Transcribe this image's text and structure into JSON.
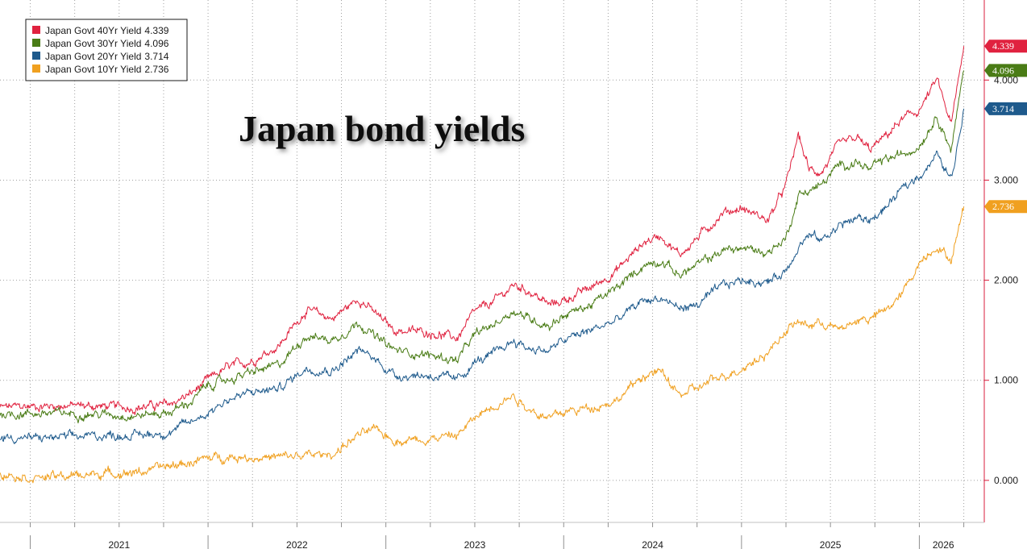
{
  "chart_data": {
    "type": "line",
    "title": "Japan bond yields",
    "x_years": [
      "2021",
      "2022",
      "2023",
      "2024",
      "2025",
      "2026"
    ],
    "y_ticks": [
      "0.000",
      "1.000",
      "2.000",
      "3.000",
      "4.000"
    ],
    "ylim": [
      -0.42,
      4.8
    ],
    "xlim": [
      2020.83,
      2026.27
    ],
    "grid": true,
    "legend_position": "top-left",
    "series": [
      {
        "name": "Japan Govt 40Yr Yield",
        "last": "4.339",
        "color": "#e0223f",
        "points": [
          [
            2020.83,
            0.73
          ],
          [
            2021.0,
            0.74
          ],
          [
            2021.2,
            0.75
          ],
          [
            2021.4,
            0.74
          ],
          [
            2021.6,
            0.73
          ],
          [
            2021.78,
            0.76
          ],
          [
            2021.9,
            0.86
          ],
          [
            2022.0,
            1.0
          ],
          [
            2022.1,
            1.12
          ],
          [
            2022.25,
            1.2
          ],
          [
            2022.4,
            1.35
          ],
          [
            2022.55,
            1.7
          ],
          [
            2022.7,
            1.62
          ],
          [
            2022.85,
            1.82
          ],
          [
            2022.95,
            1.65
          ],
          [
            2023.05,
            1.5
          ],
          [
            2023.25,
            1.48
          ],
          [
            2023.4,
            1.42
          ],
          [
            2023.5,
            1.68
          ],
          [
            2023.6,
            1.78
          ],
          [
            2023.72,
            1.95
          ],
          [
            2023.8,
            1.9
          ],
          [
            2023.92,
            1.75
          ],
          [
            2024.0,
            1.8
          ],
          [
            2024.15,
            1.92
          ],
          [
            2024.3,
            2.1
          ],
          [
            2024.45,
            2.38
          ],
          [
            2024.55,
            2.45
          ],
          [
            2024.65,
            2.25
          ],
          [
            2024.75,
            2.42
          ],
          [
            2024.9,
            2.68
          ],
          [
            2025.0,
            2.72
          ],
          [
            2025.15,
            2.6
          ],
          [
            2025.25,
            2.95
          ],
          [
            2025.32,
            3.45
          ],
          [
            2025.38,
            3.1
          ],
          [
            2025.45,
            3.08
          ],
          [
            2025.55,
            3.35
          ],
          [
            2025.65,
            3.42
          ],
          [
            2025.72,
            3.3
          ],
          [
            2025.8,
            3.42
          ],
          [
            2025.9,
            3.6
          ],
          [
            2026.0,
            3.7
          ],
          [
            2026.1,
            4.0
          ],
          [
            2026.18,
            3.55
          ],
          [
            2026.25,
            4.339
          ]
        ]
      },
      {
        "name": "Japan Govt 30Yr Yield",
        "last": "4.096",
        "color": "#4a7c16",
        "points": [
          [
            2020.83,
            0.66
          ],
          [
            2021.0,
            0.67
          ],
          [
            2021.2,
            0.67
          ],
          [
            2021.4,
            0.66
          ],
          [
            2021.6,
            0.65
          ],
          [
            2021.78,
            0.68
          ],
          [
            2021.9,
            0.78
          ],
          [
            2022.0,
            0.95
          ],
          [
            2022.1,
            1.0
          ],
          [
            2022.25,
            1.08
          ],
          [
            2022.4,
            1.15
          ],
          [
            2022.55,
            1.45
          ],
          [
            2022.7,
            1.4
          ],
          [
            2022.85,
            1.58
          ],
          [
            2022.95,
            1.42
          ],
          [
            2023.05,
            1.3
          ],
          [
            2023.25,
            1.25
          ],
          [
            2023.4,
            1.2
          ],
          [
            2023.5,
            1.45
          ],
          [
            2023.6,
            1.55
          ],
          [
            2023.72,
            1.7
          ],
          [
            2023.8,
            1.62
          ],
          [
            2023.92,
            1.55
          ],
          [
            2024.0,
            1.65
          ],
          [
            2024.15,
            1.75
          ],
          [
            2024.3,
            1.92
          ],
          [
            2024.45,
            2.15
          ],
          [
            2024.55,
            2.2
          ],
          [
            2024.65,
            2.05
          ],
          [
            2024.75,
            2.15
          ],
          [
            2024.9,
            2.3
          ],
          [
            2025.0,
            2.32
          ],
          [
            2025.15,
            2.28
          ],
          [
            2025.25,
            2.42
          ],
          [
            2025.32,
            2.85
          ],
          [
            2025.38,
            2.9
          ],
          [
            2025.45,
            2.95
          ],
          [
            2025.55,
            3.15
          ],
          [
            2025.65,
            3.18
          ],
          [
            2025.72,
            3.1
          ],
          [
            2025.8,
            3.2
          ],
          [
            2025.9,
            3.25
          ],
          [
            2026.0,
            3.35
          ],
          [
            2026.1,
            3.65
          ],
          [
            2026.18,
            3.3
          ],
          [
            2026.25,
            4.096
          ]
        ]
      },
      {
        "name": "Japan Govt 20Yr Yield",
        "last": "3.714",
        "color": "#1e5a8c",
        "points": [
          [
            2020.83,
            0.44
          ],
          [
            2021.0,
            0.42
          ],
          [
            2021.2,
            0.43
          ],
          [
            2021.4,
            0.45
          ],
          [
            2021.6,
            0.45
          ],
          [
            2021.78,
            0.48
          ],
          [
            2021.9,
            0.58
          ],
          [
            2022.0,
            0.68
          ],
          [
            2022.1,
            0.8
          ],
          [
            2022.25,
            0.88
          ],
          [
            2022.4,
            0.92
          ],
          [
            2022.55,
            1.12
          ],
          [
            2022.7,
            1.1
          ],
          [
            2022.85,
            1.3
          ],
          [
            2022.95,
            1.2
          ],
          [
            2023.05,
            1.05
          ],
          [
            2023.25,
            1.05
          ],
          [
            2023.4,
            1.0
          ],
          [
            2023.5,
            1.18
          ],
          [
            2023.6,
            1.25
          ],
          [
            2023.72,
            1.4
          ],
          [
            2023.8,
            1.32
          ],
          [
            2023.92,
            1.3
          ],
          [
            2024.0,
            1.4
          ],
          [
            2024.15,
            1.5
          ],
          [
            2024.3,
            1.6
          ],
          [
            2024.45,
            1.8
          ],
          [
            2024.55,
            1.82
          ],
          [
            2024.65,
            1.72
          ],
          [
            2024.75,
            1.75
          ],
          [
            2024.9,
            1.95
          ],
          [
            2025.0,
            2.0
          ],
          [
            2025.15,
            1.98
          ],
          [
            2025.25,
            2.1
          ],
          [
            2025.32,
            2.35
          ],
          [
            2025.38,
            2.45
          ],
          [
            2025.45,
            2.4
          ],
          [
            2025.55,
            2.55
          ],
          [
            2025.65,
            2.62
          ],
          [
            2025.72,
            2.6
          ],
          [
            2025.8,
            2.7
          ],
          [
            2025.9,
            2.9
          ],
          [
            2026.0,
            3.05
          ],
          [
            2026.1,
            3.25
          ],
          [
            2026.18,
            3.0
          ],
          [
            2026.25,
            3.714
          ]
        ]
      },
      {
        "name": "Japan Govt 10Yr Yield",
        "last": "2.736",
        "color": "#f0a020",
        "points": [
          [
            2020.83,
            0.08
          ],
          [
            2021.0,
            0.03
          ],
          [
            2021.2,
            0.04
          ],
          [
            2021.4,
            0.07
          ],
          [
            2021.6,
            0.08
          ],
          [
            2021.78,
            0.14
          ],
          [
            2021.9,
            0.18
          ],
          [
            2022.0,
            0.22
          ],
          [
            2022.1,
            0.24
          ],
          [
            2022.25,
            0.23
          ],
          [
            2022.4,
            0.23
          ],
          [
            2022.55,
            0.25
          ],
          [
            2022.7,
            0.26
          ],
          [
            2022.85,
            0.46
          ],
          [
            2022.95,
            0.5
          ],
          [
            2023.05,
            0.4
          ],
          [
            2023.25,
            0.42
          ],
          [
            2023.4,
            0.45
          ],
          [
            2023.5,
            0.62
          ],
          [
            2023.6,
            0.75
          ],
          [
            2023.72,
            0.85
          ],
          [
            2023.8,
            0.72
          ],
          [
            2023.92,
            0.62
          ],
          [
            2024.0,
            0.68
          ],
          [
            2024.15,
            0.73
          ],
          [
            2024.3,
            0.8
          ],
          [
            2024.45,
            1.05
          ],
          [
            2024.55,
            1.08
          ],
          [
            2024.65,
            0.85
          ],
          [
            2024.75,
            0.92
          ],
          [
            2024.9,
            1.05
          ],
          [
            2025.0,
            1.12
          ],
          [
            2025.15,
            1.28
          ],
          [
            2025.25,
            1.5
          ],
          [
            2025.32,
            1.58
          ],
          [
            2025.38,
            1.55
          ],
          [
            2025.45,
            1.58
          ],
          [
            2025.55,
            1.5
          ],
          [
            2025.65,
            1.6
          ],
          [
            2025.72,
            1.62
          ],
          [
            2025.8,
            1.68
          ],
          [
            2025.9,
            1.85
          ],
          [
            2026.0,
            2.18
          ],
          [
            2026.1,
            2.35
          ],
          [
            2026.18,
            2.2
          ],
          [
            2026.25,
            2.736
          ]
        ]
      }
    ]
  }
}
